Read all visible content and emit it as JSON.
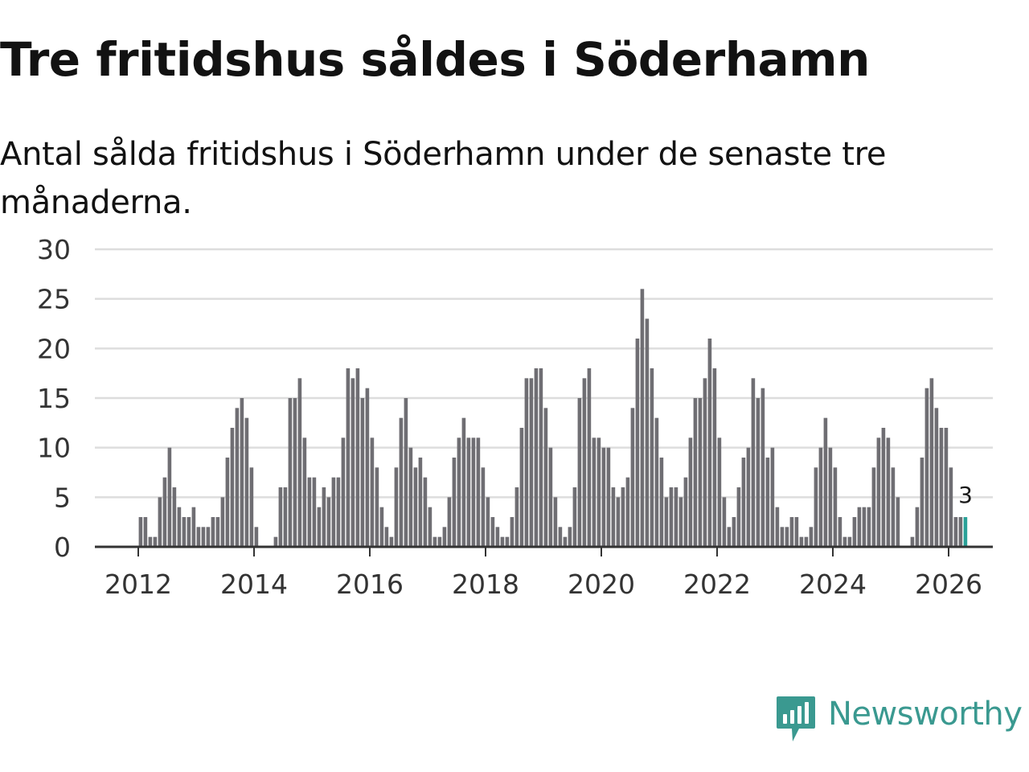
{
  "title": "Tre fritidshus såldes i Söderhamn",
  "subtitle": "Antal sålda fritidshus i Söderhamn under de senaste tre månaderna.",
  "brand": {
    "name": "Newsworthy",
    "icon": "newsworthy-logo-icon",
    "color": "#3a9990"
  },
  "colors": {
    "bar": "#6f6e73",
    "highlight": "#2aa198",
    "grid": "#dddddd",
    "axis": "#333333"
  },
  "chart_data": {
    "type": "bar",
    "x_start": "2011-01",
    "interval": "month",
    "ylim": [
      0,
      30
    ],
    "yticks": [
      0,
      5,
      10,
      15,
      20,
      25,
      30
    ],
    "xticks": [
      "2012",
      "2014",
      "2016",
      "2018",
      "2020",
      "2022",
      "2024",
      "2026"
    ],
    "grid": true,
    "highlight_last": true,
    "last_value_label": "3",
    "values": [
      0,
      0,
      0,
      0,
      0,
      0,
      0,
      0,
      0,
      0,
      0,
      0,
      3,
      3,
      1,
      1,
      5,
      7,
      10,
      6,
      4,
      3,
      3,
      4,
      2,
      2,
      2,
      3,
      3,
      5,
      9,
      12,
      14,
      15,
      13,
      8,
      2,
      0,
      0,
      0,
      1,
      6,
      6,
      15,
      15,
      17,
      11,
      7,
      7,
      4,
      6,
      5,
      7,
      7,
      11,
      18,
      17,
      18,
      15,
      16,
      11,
      8,
      4,
      2,
      1,
      8,
      13,
      15,
      10,
      8,
      9,
      7,
      4,
      1,
      1,
      2,
      5,
      9,
      11,
      13,
      11,
      11,
      11,
      8,
      5,
      3,
      2,
      1,
      1,
      3,
      6,
      12,
      17,
      17,
      18,
      18,
      14,
      10,
      5,
      2,
      1,
      2,
      6,
      15,
      17,
      18,
      11,
      11,
      10,
      10,
      6,
      5,
      6,
      7,
      14,
      21,
      26,
      23,
      18,
      13,
      9,
      5,
      6,
      6,
      5,
      7,
      11,
      15,
      15,
      17,
      21,
      18,
      11,
      5,
      2,
      3,
      6,
      9,
      10,
      17,
      15,
      16,
      9,
      10,
      4,
      2,
      2,
      3,
      3,
      1,
      1,
      2,
      8,
      10,
      13,
      10,
      8,
      3,
      1,
      1,
      3,
      4,
      4,
      4,
      8,
      11,
      12,
      11,
      8,
      5,
      0,
      0,
      1,
      4,
      9,
      16,
      17,
      14,
      12,
      12,
      8,
      3,
      3,
      3
    ]
  }
}
